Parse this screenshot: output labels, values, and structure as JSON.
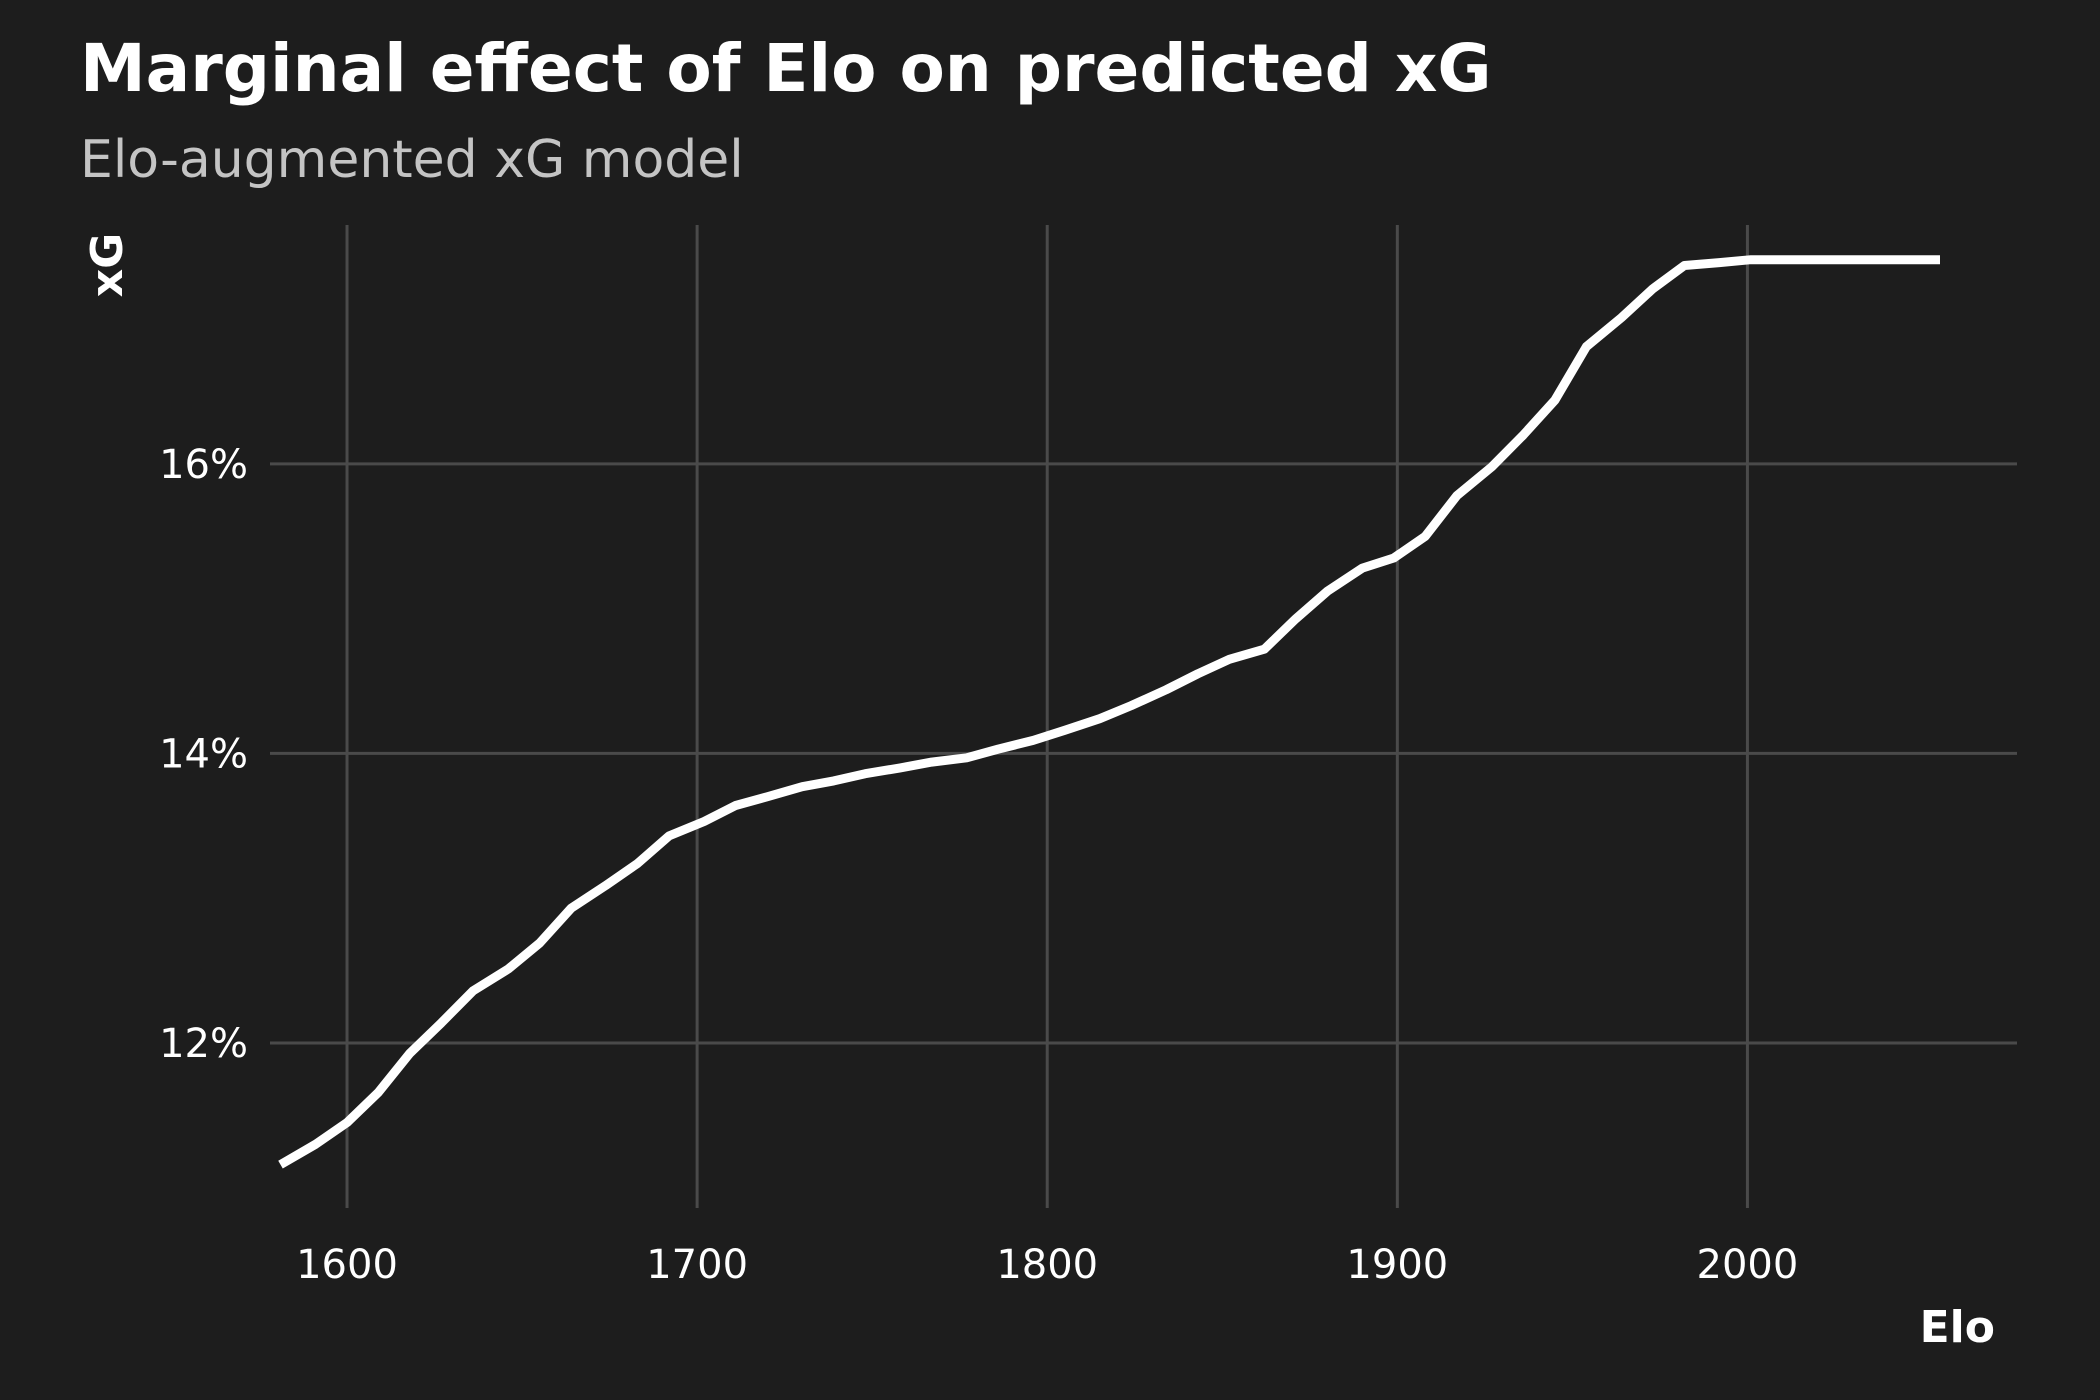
{
  "chart_data": {
    "type": "line",
    "title": "Marginal effect of Elo on predicted xG",
    "subtitle": "Elo-augmented xG model",
    "xlabel": "Elo",
    "ylabel": "xG",
    "x_ticks": [
      1600,
      1700,
      1800,
      1900,
      2000
    ],
    "y_ticks": [
      0.12,
      0.14,
      0.16
    ],
    "y_tick_labels": [
      "12%",
      "14%",
      "16%"
    ],
    "xlim": [
      1578,
      2077
    ],
    "ylim": [
      0.1086,
      0.1765
    ],
    "grid": true,
    "legend": "none",
    "colors": {
      "background": "#1d1d1d",
      "line": "#ffffff",
      "grid": "#4a4a4a",
      "subtitle": "#c4c4c4"
    },
    "series": [
      {
        "x": [
          1581,
          1591,
          1600,
          1609,
          1618,
          1627,
          1636,
          1646,
          1655,
          1664,
          1674,
          1683,
          1692,
          1702,
          1711,
          1720,
          1730,
          1739,
          1748,
          1758,
          1767,
          1777,
          1786,
          1796,
          1805,
          1815,
          1824,
          1834,
          1843,
          1852,
          1862,
          1871,
          1880,
          1890,
          1899,
          1908,
          1917,
          1927,
          1936,
          1945,
          1954,
          1964,
          1973,
          1982,
          1992,
          2001,
          2010,
          2020,
          2029,
          2038,
          2055
        ],
        "y": [
          0.1116,
          0.113,
          0.1145,
          0.1166,
          0.1193,
          0.1214,
          0.1236,
          0.1251,
          0.1269,
          0.1293,
          0.1309,
          0.1324,
          0.1343,
          0.1353,
          0.1364,
          0.137,
          0.1377,
          0.1381,
          0.1386,
          0.139,
          0.1394,
          0.1397,
          0.1403,
          0.1409,
          0.1416,
          0.1424,
          0.1433,
          0.1444,
          0.1455,
          0.1465,
          0.1472,
          0.1493,
          0.1512,
          0.1528,
          0.1535,
          0.155,
          0.1578,
          0.1598,
          0.162,
          0.1644,
          0.1681,
          0.1701,
          0.1721,
          0.1737,
          0.1739,
          0.1741,
          0.1741,
          0.1741,
          0.1741,
          0.1741,
          0.1741
        ]
      }
    ]
  }
}
